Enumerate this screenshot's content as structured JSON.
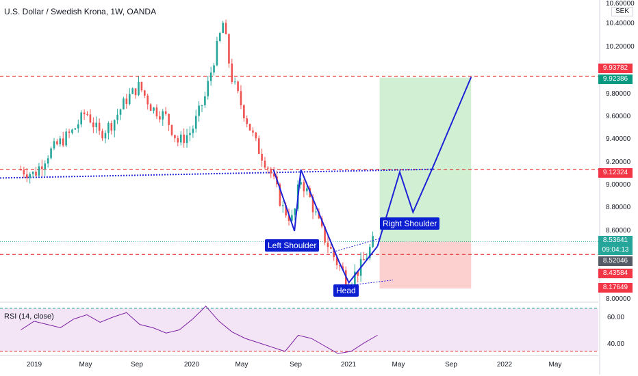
{
  "header": {
    "title": "U.S. Dollar / Swedish Krona, 1W, OANDA",
    "unit": "SEK"
  },
  "rsi": {
    "label": "RSI (14, close)",
    "ticks": [
      "60.00",
      "40.00"
    ]
  },
  "annotations": {
    "left_shoulder": "Left Shoulder",
    "head": "Head",
    "right_shoulder": "Right Shoulder"
  },
  "price_boxes": [
    {
      "value": "9.93782",
      "color": "#f23645"
    },
    {
      "value": "9.92386",
      "color": "#089981"
    },
    {
      "value": "9.12324",
      "color": "#f23645"
    },
    {
      "value": "8.53641",
      "color": "#26a69a"
    },
    {
      "value": "09:04:13",
      "color": "#26a69a"
    },
    {
      "value": "8.52046",
      "color": "#555b66"
    },
    {
      "value": "8.43584",
      "color": "#f23645"
    },
    {
      "value": "8.17649",
      "color": "#f23645"
    }
  ],
  "colors": {
    "up": "#26a69a",
    "down": "#ef5350",
    "pattern": "#1e22d6",
    "dashed": "#e53935",
    "neckline": "#2a2ed8",
    "rsi_line": "#7b1fa2",
    "rsi_fill": "#f3e5f5",
    "target_zone": "#d0efd3",
    "stop_zone": "#fdd0d0"
  },
  "chart_data": {
    "type": "candlestick",
    "title": "U.S. Dollar / Swedish Krona, 1W, OANDA",
    "x_ticks": [
      "2019",
      "May",
      "Sep",
      "2020",
      "May",
      "Sep",
      "2021",
      "May",
      "Sep",
      "2022",
      "May"
    ],
    "y_ticks": [
      "10.60000",
      "10.40000",
      "10.20000",
      "9.80000",
      "9.60000",
      "9.40000",
      "9.20000",
      "9.00000",
      "8.80000",
      "8.60000",
      "8.00000"
    ],
    "y_scale": "log",
    "price_levels": {
      "resistance_top": 9.93782,
      "target": 9.92386,
      "neckline": 9.12324,
      "last": 8.53641,
      "reference": 8.52046,
      "support": 8.43584,
      "stop": 8.17649
    },
    "close_path": [
      [
        "2018-12-01",
        9.12
      ],
      [
        "2019-01-01",
        9.08
      ],
      [
        "2019-02-01",
        9.25
      ],
      [
        "2019-03-01",
        9.35
      ],
      [
        "2019-04-01",
        9.45
      ],
      [
        "2019-05-01",
        9.62
      ],
      [
        "2019-06-01",
        9.42
      ],
      [
        "2019-07-01",
        9.52
      ],
      [
        "2019-08-01",
        9.72
      ],
      [
        "2019-09-01",
        9.85
      ],
      [
        "2019-10-01",
        9.65
      ],
      [
        "2019-11-01",
        9.58
      ],
      [
        "2019-12-01",
        9.35
      ],
      [
        "2020-01-01",
        9.45
      ],
      [
        "2020-02-01",
        9.75
      ],
      [
        "2020-03-15",
        10.45
      ],
      [
        "2020-04-01",
        9.95
      ],
      [
        "2020-05-01",
        9.62
      ],
      [
        "2020-06-01",
        9.32
      ],
      [
        "2020-07-01",
        9.12
      ],
      [
        "2020-08-01",
        8.8
      ],
      [
        "2020-08-25",
        8.7
      ],
      [
        "2020-09-10",
        9.05
      ],
      [
        "2020-10-01",
        8.9
      ],
      [
        "2020-11-01",
        8.6
      ],
      [
        "2020-12-01",
        8.4
      ],
      [
        "2021-01-01",
        8.22
      ],
      [
        "2021-02-01",
        8.35
      ],
      [
        "2021-03-01",
        8.54
      ]
    ],
    "rsi_values": [
      50,
      58,
      55,
      52,
      60,
      64,
      57,
      62,
      66,
      55,
      52,
      47,
      50,
      60,
      72,
      58,
      48,
      42,
      38,
      34,
      30,
      45,
      42,
      35,
      28,
      30,
      38,
      45
    ],
    "projection": [
      [
        "2021-03-10",
        8.5,
        "support"
      ],
      [
        "2021-05-01",
        9.1,
        "neckline"
      ],
      [
        "2021-06-01",
        8.77,
        "trough"
      ],
      [
        "2021-07-15",
        9.12,
        "neckline"
      ],
      [
        "2021-10-15",
        9.93,
        "target"
      ]
    ]
  }
}
